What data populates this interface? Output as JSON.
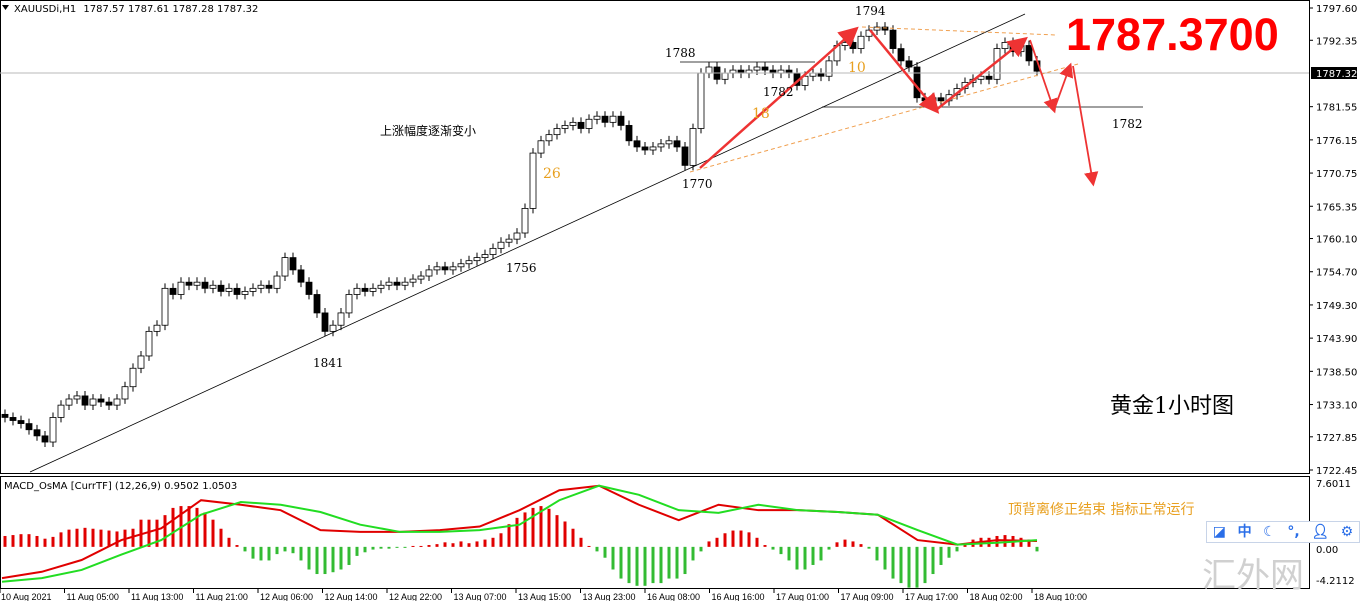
{
  "header": {
    "symbol": "XAUUSDi,H1",
    "ohlc": "1787.57 1787.61 1787.28 1787.32"
  },
  "price_axis": {
    "ticks": [
      "1797.60",
      "1792.35",
      "1781.55",
      "1776.15",
      "1770.75",
      "1765.35",
      "1760.10",
      "1754.70",
      "1749.30",
      "1743.90",
      "1738.50",
      "1733.10",
      "1727.85",
      "1722.45"
    ],
    "current": "1787.32"
  },
  "macd_axis": {
    "top": "7.6011",
    "zero": "0.00",
    "bottom": "-4.2112"
  },
  "time_axis": [
    "10 Aug 2021",
    "11 Aug 05:00",
    "11 Aug 13:00",
    "11 Aug 21:00",
    "12 Aug 06:00",
    "12 Aug 14:00",
    "12 Aug 22:00",
    "13 Aug 07:00",
    "13 Aug 15:00",
    "13 Aug 23:00",
    "16 Aug 08:00",
    "16 Aug 16:00",
    "17 Aug 01:00",
    "17 Aug 09:00",
    "17 Aug 17:00",
    "18 Aug 02:00",
    "18 Aug 10:00"
  ],
  "indicator": {
    "label": "MACD_OsMA [CurrTF] (12,26,9) 0.9502 1.0503"
  },
  "annotations": {
    "big_price": "1787.3700",
    "title": "黄金1小时图",
    "note_up": "上涨幅度逐渐变小",
    "macd_note": "顶背离修正结束  指标正常运行",
    "l1794": "1794",
    "l1788": "1788",
    "l1782a": "1782",
    "l1782b": "1782",
    "l1770": "1770",
    "l1756": "1756",
    "l1841": "1841",
    "n18": "18",
    "n10": "10",
    "n26": "26"
  },
  "toolbar": {
    "icons": [
      "edit-icon",
      "chinese-input-icon",
      "moon-icon",
      "punctuation-icon",
      "user-icon",
      "gear-icon"
    ],
    "zh": "中"
  },
  "watermark": "汇外网",
  "colors": {
    "bull": "#ffffff",
    "bear": "#000000",
    "macd": "#e00000",
    "signal": "#22dd22",
    "hist_pos": "#e00000",
    "hist_neg": "#33bb33",
    "arrow": "#ee3333",
    "dashed": "#f0a050",
    "accent_text": "#e8a020"
  },
  "chart_data": {
    "type": "candlestick",
    "timeframe": "H1",
    "ylim": [
      1722.45,
      1797.6
    ],
    "close": [
      1731,
      1730.5,
      1730,
      1729,
      1728,
      1727,
      1731,
      1733,
      1734,
      1734.5,
      1733,
      1734,
      1733.5,
      1733,
      1734,
      1736,
      1739,
      1741,
      1745,
      1746,
      1752,
      1751,
      1753,
      1752.5,
      1753,
      1752,
      1752.5,
      1751.5,
      1752,
      1751,
      1751.5,
      1752,
      1752.5,
      1752,
      1754,
      1757,
      1755,
      1753,
      1751,
      1748,
      1745,
      1746,
      1748,
      1751,
      1752,
      1751.5,
      1752,
      1752.5,
      1753,
      1752.5,
      1753,
      1753.5,
      1754,
      1755,
      1755.5,
      1755,
      1755.5,
      1756,
      1756.5,
      1757,
      1757.5,
      1758.5,
      1759.5,
      1760,
      1761,
      1765,
      1774,
      1776,
      1777,
      1778,
      1778.5,
      1779,
      1778,
      1779.5,
      1780,
      1779,
      1780,
      1778.5,
      1776,
      1775,
      1774.5,
      1775,
      1775.5,
      1776,
      1775,
      1772,
      1778,
      1787,
      1788,
      1786,
      1787,
      1787.5,
      1787,
      1787.5,
      1788,
      1787.5,
      1787,
      1787.5,
      1787,
      1785,
      1786.5,
      1787,
      1786.5,
      1789,
      1791.5,
      1792,
      1791,
      1793,
      1794,
      1794.5,
      1794,
      1791,
      1789,
      1788,
      1783,
      1782.5,
      1783,
      1782.5,
      1783.5,
      1784.5,
      1785.5,
      1786,
      1786.5,
      1786,
      1791,
      1792,
      1790.5,
      1791.5,
      1789,
      1787.32
    ],
    "macd": {
      "ylim": [
        -4.2112,
        7.6011
      ],
      "histogram": [
        1.2,
        1.3,
        1.4,
        1.4,
        1.2,
        0.9,
        1.1,
        1.6,
        1.9,
        2.0,
        2.1,
        2.0,
        1.9,
        1.8,
        1.7,
        1.9,
        2.0,
        3.0,
        3.0,
        3.0,
        3.5,
        4.3,
        4.5,
        4.5,
        4.3,
        3.8,
        3.0,
        2.0,
        1.0,
        0.2,
        -0.5,
        -1.3,
        -1.5,
        -1.5,
        -0.8,
        -0.5,
        -0.7,
        -1.5,
        -2.5,
        -3.0,
        -3.0,
        -2.8,
        -2.5,
        -2.0,
        -1.0,
        -0.6,
        -0.3,
        -0.2,
        -0.2,
        -0.1,
        -0.1,
        0.1,
        0.1,
        0.2,
        0.3,
        0.5,
        0.4,
        0.6,
        0.4,
        0.6,
        0.8,
        1.0,
        1.5,
        2.5,
        3.2,
        3.8,
        4.3,
        4.5,
        4.2,
        3.5,
        2.8,
        2.0,
        1.0,
        0.1,
        -0.5,
        -1.2,
        -2.5,
        -3.5,
        -4.0,
        -4.3,
        -4.3,
        -4.0,
        -4.0,
        -3.5,
        -3.5,
        -3.0,
        -1.5,
        -0.5,
        0.6,
        1.0,
        1.5,
        1.8,
        1.8,
        1.6,
        1.0,
        0.2,
        -0.3,
        -0.8,
        -1.5,
        -2.5,
        -2.5,
        -2.0,
        -1.5,
        -0.3,
        0.5,
        0.8,
        0.6,
        0.3,
        -0.2,
        -1.5,
        -2.5,
        -3.5,
        -4.0,
        -4.5,
        -4.5,
        -4.0,
        -3.0,
        -2.0,
        -1.2,
        -0.5,
        0.3,
        0.8,
        1.0,
        1.0,
        1.2,
        1.3,
        1.2,
        1.0,
        0.8,
        -0.5
      ],
      "macd_line": [
        -2.9,
        -2.2,
        -0.9,
        1.3,
        2.6,
        5.7,
        5.2,
        4.6,
        2.4,
        2.2,
        2.2,
        2.4,
        2.8,
        4.6,
        6.8,
        7.3,
        5.2,
        3.5,
        5.2,
        4.6,
        4.6,
        4.4,
        4.1,
        1.3,
        0.8,
        1.3,
        1.2
      ],
      "signal_line": [
        -3.3,
        -2.9,
        -2.0,
        -0.3,
        1.3,
        4.1,
        5.5,
        5.2,
        4.4,
        3.0,
        2.2,
        2.2,
        2.4,
        3.0,
        5.7,
        7.3,
        6.3,
        4.6,
        4.3,
        5.2,
        4.6,
        4.4,
        4.1,
        2.4,
        0.8,
        1.0,
        1.3
      ]
    }
  }
}
